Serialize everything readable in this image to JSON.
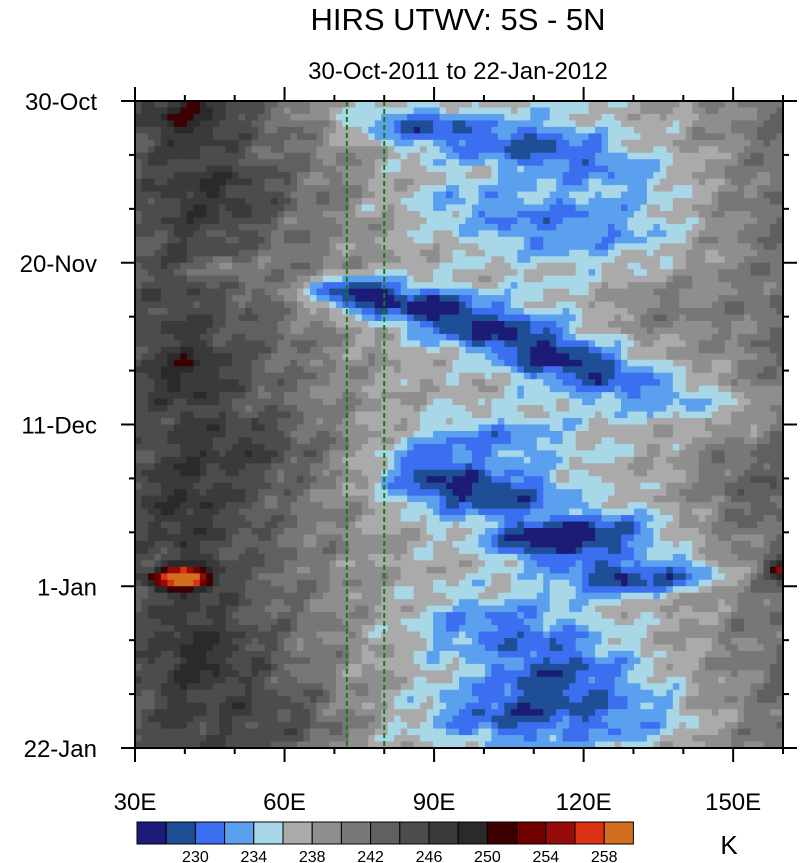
{
  "chart_data": {
    "type": "heatmap",
    "title": "HIRS UTWV: 5S - 5N",
    "subtitle": "30-Oct-2011 to 22-Jan-2012",
    "x_axis": {
      "range": [
        30,
        160
      ],
      "units": "degrees longitude",
      "ticks": [
        {
          "value": 30,
          "label": "30E"
        },
        {
          "value": 60,
          "label": "60E"
        },
        {
          "value": 90,
          "label": "90E"
        },
        {
          "value": 120,
          "label": "120E"
        },
        {
          "value": 150,
          "label": "150E"
        }
      ],
      "minor_step": 10
    },
    "y_axis": {
      "range": [
        0,
        84
      ],
      "units": "days since 30-Oct-2011",
      "direction": "top-to-bottom",
      "ticks": [
        {
          "value": 0,
          "label": "30-Oct"
        },
        {
          "value": 21,
          "label": "20-Nov"
        },
        {
          "value": 42,
          "label": "11-Dec"
        },
        {
          "value": 63,
          "label": "1-Jan"
        },
        {
          "value": 84,
          "label": "22-Jan"
        }
      ],
      "minor_step": 7
    },
    "reference_lines": [
      {
        "lon": 72.5,
        "style": "dashed",
        "color": "#1a7a1a"
      },
      {
        "lon": 80,
        "style": "dashed",
        "color": "#1a7a1a"
      }
    ],
    "colorbar": {
      "unit": "K",
      "colors": [
        "#1c1c78",
        "#1e4e96",
        "#3c6ef0",
        "#5aa0ee",
        "#a8d8e8",
        "#aaaaaa",
        "#8e8e8e",
        "#777777",
        "#606060",
        "#4c4c4c",
        "#3a3a3a",
        "#2a2a2a",
        "#3c0000",
        "#6e0000",
        "#960a0a",
        "#dc3214",
        "#d26e1e"
      ],
      "labels": [
        {
          "after_box": 2,
          "text": "230"
        },
        {
          "after_box": 4,
          "text": "234"
        },
        {
          "after_box": 6,
          "text": "238"
        },
        {
          "after_box": 8,
          "text": "242"
        },
        {
          "after_box": 10,
          "text": "246"
        },
        {
          "after_box": 12,
          "text": "250"
        },
        {
          "after_box": 14,
          "text": "254"
        },
        {
          "after_box": 16,
          "text": "258"
        }
      ]
    },
    "features": [
      {
        "lon": 72,
        "day": 2,
        "lw": 8,
        "dw": 1.5,
        "amp": -2.0
      },
      {
        "lon": 85,
        "day": 3,
        "lw": 12,
        "dw": 2.2,
        "amp": -6.0
      },
      {
        "lon": 100,
        "day": 5,
        "lw": 16,
        "dw": 3.0,
        "amp": -5.0
      },
      {
        "lon": 115,
        "day": 7,
        "lw": 14,
        "dw": 3.0,
        "amp": -4.0
      },
      {
        "lon": 130,
        "day": 10,
        "lw": 12,
        "dw": 3.5,
        "amp": -3.0
      },
      {
        "lon": 95,
        "day": 13,
        "lw": 12,
        "dw": 3.0,
        "amp": -3.0
      },
      {
        "lon": 110,
        "day": 16,
        "lw": 14,
        "dw": 4.0,
        "amp": -4.0
      },
      {
        "lon": 130,
        "day": 17,
        "lw": 12,
        "dw": 4.0,
        "amp": -3.0
      },
      {
        "lon": 48,
        "day": 22,
        "lw": 8,
        "dw": 2.0,
        "amp": -4.0
      },
      {
        "lon": 74,
        "day": 25,
        "lw": 10,
        "dw": 2.2,
        "amp": -12.0
      },
      {
        "lon": 90,
        "day": 27,
        "lw": 12,
        "dw": 2.5,
        "amp": -9.0
      },
      {
        "lon": 102,
        "day": 30,
        "lw": 12,
        "dw": 2.5,
        "amp": -8.0
      },
      {
        "lon": 112,
        "day": 33,
        "lw": 10,
        "dw": 2.5,
        "amp": -7.0
      },
      {
        "lon": 122,
        "day": 35,
        "lw": 10,
        "dw": 2.5,
        "amp": -6.0
      },
      {
        "lon": 134,
        "day": 38,
        "lw": 12,
        "dw": 3.0,
        "amp": -5.0
      },
      {
        "lon": 150,
        "day": 40,
        "lw": 10,
        "dw": 3.0,
        "amp": -3.0
      },
      {
        "lon": 100,
        "day": 44,
        "lw": 14,
        "dw": 3.0,
        "amp": -5.0
      },
      {
        "lon": 88,
        "day": 48,
        "lw": 10,
        "dw": 3.0,
        "amp": -6.0
      },
      {
        "lon": 100,
        "day": 51,
        "lw": 14,
        "dw": 3.0,
        "amp": -9.0
      },
      {
        "lon": 113,
        "day": 57,
        "lw": 12,
        "dw": 2.5,
        "amp": -11.0
      },
      {
        "lon": 128,
        "day": 56,
        "lw": 10,
        "dw": 3.0,
        "amp": -5.0
      },
      {
        "lon": 128,
        "day": 62,
        "lw": 12,
        "dw": 2.0,
        "amp": -9.0
      },
      {
        "lon": 142,
        "day": 61,
        "lw": 8,
        "dw": 2.0,
        "amp": -5.0
      },
      {
        "lon": 100,
        "day": 68,
        "lw": 14,
        "dw": 4.0,
        "amp": -5.0
      },
      {
        "lon": 115,
        "day": 74,
        "lw": 16,
        "dw": 5.0,
        "amp": -6.0
      },
      {
        "lon": 103,
        "day": 80,
        "lw": 16,
        "dw": 4.0,
        "amp": -6.0
      },
      {
        "lon": 130,
        "day": 80,
        "lw": 14,
        "dw": 4.0,
        "amp": -4.0
      },
      {
        "lon": 40,
        "day": 2,
        "lw": 10,
        "dw": 3.0,
        "amp": 4.0
      },
      {
        "lon": 50,
        "day": 12,
        "lw": 12,
        "dw": 4.0,
        "amp": 3.0
      },
      {
        "lon": 135,
        "day": 27,
        "lw": 12,
        "dw": 4.0,
        "amp": 3.0
      },
      {
        "lon": 40,
        "day": 35,
        "lw": 10,
        "dw": 4.0,
        "amp": 3.0
      },
      {
        "lon": 55,
        "day": 45,
        "lw": 12,
        "dw": 4.0,
        "amp": 3.0
      },
      {
        "lon": 40,
        "day": 52,
        "lw": 14,
        "dw": 6.0,
        "amp": 2.0
      },
      {
        "lon": 40,
        "day": 62,
        "lw": 6,
        "dw": 1.5,
        "amp": 14.0
      },
      {
        "lon": 36,
        "day": 62,
        "lw": 4,
        "dw": 1.0,
        "amp": 3.0
      },
      {
        "lon": 160,
        "day": 61,
        "lw": 3,
        "dw": 1.2,
        "amp": 13.0
      },
      {
        "lon": 45,
        "day": 72,
        "lw": 12,
        "dw": 5.0,
        "amp": 3.0
      },
      {
        "lon": 60,
        "day": 80,
        "lw": 12,
        "dw": 4.0,
        "amp": 3.0
      },
      {
        "lon": 150,
        "day": 50,
        "lw": 10,
        "dw": 5.0,
        "amp": 2.5
      }
    ]
  }
}
